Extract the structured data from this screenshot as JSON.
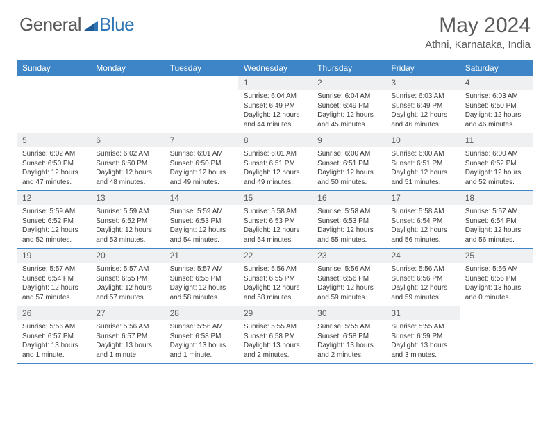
{
  "brand": {
    "part1": "General",
    "part2": "Blue"
  },
  "title": {
    "month": "May 2024",
    "location": "Athni, Karnataka, India"
  },
  "colors": {
    "header_bg": "#3d85c6",
    "header_text": "#ffffff",
    "daynum_bg": "#eef0f2",
    "border": "#3d85c6",
    "text": "#3a3a3a",
    "muted": "#5a5a5a",
    "brand_blue": "#2f75b5"
  },
  "dayNames": [
    "Sunday",
    "Monday",
    "Tuesday",
    "Wednesday",
    "Thursday",
    "Friday",
    "Saturday"
  ],
  "firstDayOffset": 3,
  "days": [
    {
      "n": 1,
      "sunrise": "6:04 AM",
      "sunset": "6:49 PM",
      "daylight": "12 hours and 44 minutes."
    },
    {
      "n": 2,
      "sunrise": "6:04 AM",
      "sunset": "6:49 PM",
      "daylight": "12 hours and 45 minutes."
    },
    {
      "n": 3,
      "sunrise": "6:03 AM",
      "sunset": "6:49 PM",
      "daylight": "12 hours and 46 minutes."
    },
    {
      "n": 4,
      "sunrise": "6:03 AM",
      "sunset": "6:50 PM",
      "daylight": "12 hours and 46 minutes."
    },
    {
      "n": 5,
      "sunrise": "6:02 AM",
      "sunset": "6:50 PM",
      "daylight": "12 hours and 47 minutes."
    },
    {
      "n": 6,
      "sunrise": "6:02 AM",
      "sunset": "6:50 PM",
      "daylight": "12 hours and 48 minutes."
    },
    {
      "n": 7,
      "sunrise": "6:01 AM",
      "sunset": "6:50 PM",
      "daylight": "12 hours and 49 minutes."
    },
    {
      "n": 8,
      "sunrise": "6:01 AM",
      "sunset": "6:51 PM",
      "daylight": "12 hours and 49 minutes."
    },
    {
      "n": 9,
      "sunrise": "6:00 AM",
      "sunset": "6:51 PM",
      "daylight": "12 hours and 50 minutes."
    },
    {
      "n": 10,
      "sunrise": "6:00 AM",
      "sunset": "6:51 PM",
      "daylight": "12 hours and 51 minutes."
    },
    {
      "n": 11,
      "sunrise": "6:00 AM",
      "sunset": "6:52 PM",
      "daylight": "12 hours and 52 minutes."
    },
    {
      "n": 12,
      "sunrise": "5:59 AM",
      "sunset": "6:52 PM",
      "daylight": "12 hours and 52 minutes."
    },
    {
      "n": 13,
      "sunrise": "5:59 AM",
      "sunset": "6:52 PM",
      "daylight": "12 hours and 53 minutes."
    },
    {
      "n": 14,
      "sunrise": "5:59 AM",
      "sunset": "6:53 PM",
      "daylight": "12 hours and 54 minutes."
    },
    {
      "n": 15,
      "sunrise": "5:58 AM",
      "sunset": "6:53 PM",
      "daylight": "12 hours and 54 minutes."
    },
    {
      "n": 16,
      "sunrise": "5:58 AM",
      "sunset": "6:53 PM",
      "daylight": "12 hours and 55 minutes."
    },
    {
      "n": 17,
      "sunrise": "5:58 AM",
      "sunset": "6:54 PM",
      "daylight": "12 hours and 56 minutes."
    },
    {
      "n": 18,
      "sunrise": "5:57 AM",
      "sunset": "6:54 PM",
      "daylight": "12 hours and 56 minutes."
    },
    {
      "n": 19,
      "sunrise": "5:57 AM",
      "sunset": "6:54 PM",
      "daylight": "12 hours and 57 minutes."
    },
    {
      "n": 20,
      "sunrise": "5:57 AM",
      "sunset": "6:55 PM",
      "daylight": "12 hours and 57 minutes."
    },
    {
      "n": 21,
      "sunrise": "5:57 AM",
      "sunset": "6:55 PM",
      "daylight": "12 hours and 58 minutes."
    },
    {
      "n": 22,
      "sunrise": "5:56 AM",
      "sunset": "6:55 PM",
      "daylight": "12 hours and 58 minutes."
    },
    {
      "n": 23,
      "sunrise": "5:56 AM",
      "sunset": "6:56 PM",
      "daylight": "12 hours and 59 minutes."
    },
    {
      "n": 24,
      "sunrise": "5:56 AM",
      "sunset": "6:56 PM",
      "daylight": "12 hours and 59 minutes."
    },
    {
      "n": 25,
      "sunrise": "5:56 AM",
      "sunset": "6:56 PM",
      "daylight": "13 hours and 0 minutes."
    },
    {
      "n": 26,
      "sunrise": "5:56 AM",
      "sunset": "6:57 PM",
      "daylight": "13 hours and 1 minute."
    },
    {
      "n": 27,
      "sunrise": "5:56 AM",
      "sunset": "6:57 PM",
      "daylight": "13 hours and 1 minute."
    },
    {
      "n": 28,
      "sunrise": "5:56 AM",
      "sunset": "6:58 PM",
      "daylight": "13 hours and 1 minute."
    },
    {
      "n": 29,
      "sunrise": "5:55 AM",
      "sunset": "6:58 PM",
      "daylight": "13 hours and 2 minutes."
    },
    {
      "n": 30,
      "sunrise": "5:55 AM",
      "sunset": "6:58 PM",
      "daylight": "13 hours and 2 minutes."
    },
    {
      "n": 31,
      "sunrise": "5:55 AM",
      "sunset": "6:59 PM",
      "daylight": "13 hours and 3 minutes."
    }
  ],
  "labels": {
    "sunrise": "Sunrise:",
    "sunset": "Sunset:",
    "daylight": "Daylight:"
  }
}
